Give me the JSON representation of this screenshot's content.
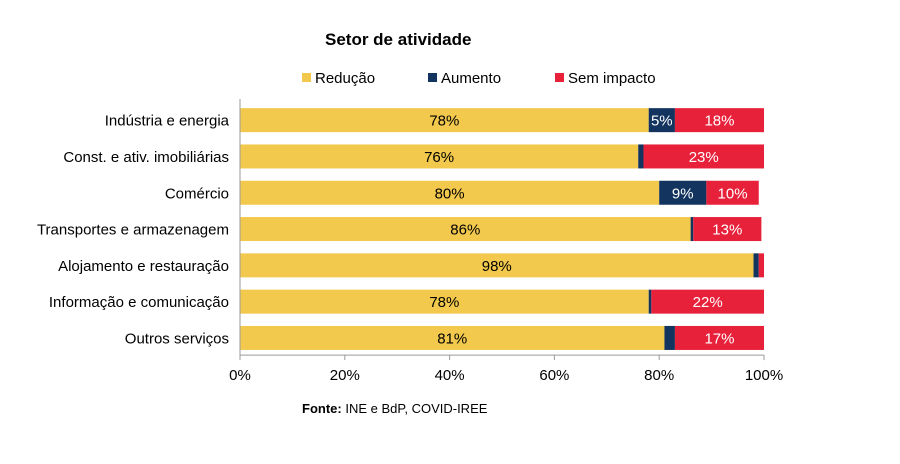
{
  "chart_data": {
    "type": "bar",
    "orientation": "horizontal",
    "stacked": true,
    "title": "Setor de atividade",
    "categories": [
      "Indústria e energia",
      "Const. e ativ. imobiliárias",
      "Comércio",
      "Transportes e armazenagem",
      "Alojamento e restauração",
      "Informação e comunicação",
      "Outros serviços"
    ],
    "series": [
      {
        "name": "Redução",
        "color": "#F2C94C",
        "values": [
          78,
          76,
          80,
          86,
          98,
          78,
          81
        ],
        "labels": [
          "78%",
          "76%",
          "80%",
          "86%",
          "98%",
          "78%",
          "81%"
        ]
      },
      {
        "name": "Aumento",
        "color": "#12345E",
        "values": [
          5,
          1,
          9,
          0.5,
          1,
          0.5,
          2
        ],
        "labels": [
          "5%",
          "",
          "9%",
          "",
          "",
          "",
          ""
        ]
      },
      {
        "name": "Sem impacto",
        "color": "#E8213B",
        "values": [
          18,
          23,
          10,
          13,
          1,
          22,
          17
        ],
        "labels": [
          "18%",
          "23%",
          "10%",
          "13%",
          "",
          "22%",
          "17%"
        ]
      }
    ],
    "xlim": [
      0,
      100
    ],
    "xticks": [
      "0%",
      "20%",
      "40%",
      "60%",
      "80%",
      "100%"
    ],
    "legend": "top",
    "grid": false
  },
  "source": {
    "label": "Fonte:",
    "text": " INE e BdP, COVID-IREE"
  }
}
